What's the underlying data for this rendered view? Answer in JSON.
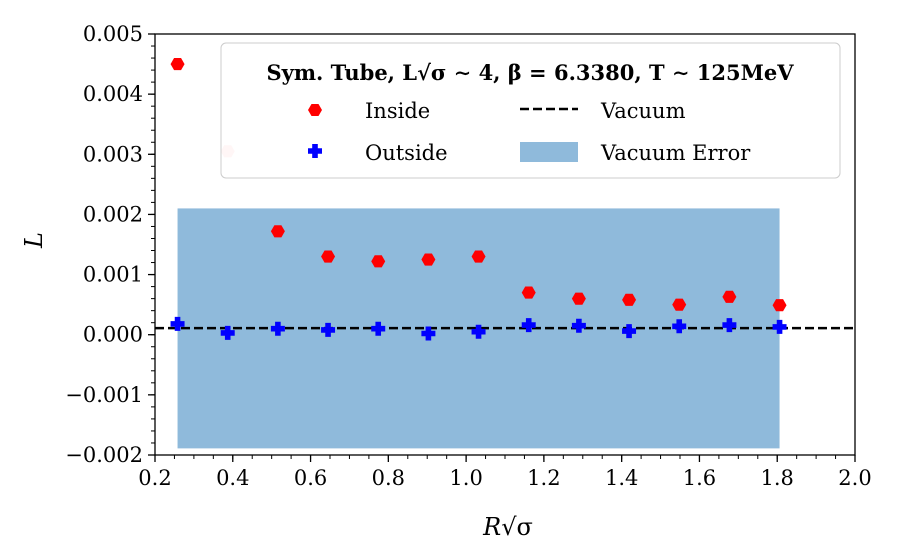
{
  "chart_data": {
    "type": "scatter",
    "title": "",
    "xlabel": "R√σ",
    "ylabel": "L",
    "xlim": [
      0.2,
      2.0
    ],
    "ylim": [
      -0.002,
      0.005
    ],
    "x_ticks": [
      0.2,
      0.4,
      0.6,
      0.8,
      1.0,
      1.2,
      1.4,
      1.6,
      1.8,
      2.0
    ],
    "x_tick_labels": [
      "0.2",
      "0.4",
      "0.6",
      "0.8",
      "1.0",
      "1.2",
      "1.4",
      "1.6",
      "1.8",
      "2.0"
    ],
    "y_ticks": [
      -0.002,
      -0.001,
      0.0,
      0.001,
      0.002,
      0.003,
      0.004,
      0.005
    ],
    "y_tick_labels": [
      "−0.002",
      "−0.001",
      "0.000",
      "0.001",
      "0.002",
      "0.003",
      "0.004",
      "0.005"
    ],
    "legend": {
      "title": "Sym.  Tube, L√σ ∼ 4, β = 6.3380, T ∼ 125MeV",
      "entries": [
        "Inside",
        "Vacuum",
        "Outside",
        "Vacuum Error"
      ],
      "location": "top-right"
    },
    "series": [
      {
        "name": "Inside",
        "marker": "hexagon",
        "color": "#ff0000",
        "x": [
          0.258,
          0.387,
          0.516,
          0.645,
          0.774,
          0.903,
          1.032,
          1.161,
          1.29,
          1.419,
          1.548,
          1.677,
          1.806
        ],
        "y": [
          0.0045,
          0.00305,
          0.00172,
          0.0013,
          0.00122,
          0.00125,
          0.0013,
          0.0007,
          0.0006,
          0.00058,
          0.0005,
          0.00063,
          0.00049
        ]
      },
      {
        "name": "Outside",
        "marker": "plus",
        "color": "#0000ff",
        "x": [
          0.258,
          0.387,
          0.516,
          0.645,
          0.774,
          0.903,
          1.032,
          1.161,
          1.29,
          1.419,
          1.548,
          1.677,
          1.806
        ],
        "y": [
          0.00018,
          3e-05,
          0.0001,
          8e-05,
          0.0001,
          2e-05,
          5e-05,
          0.00016,
          0.00015,
          6e-05,
          0.00014,
          0.00016,
          0.00013
        ]
      }
    ],
    "vacuum": {
      "name": "Vacuum",
      "y": 0.00011,
      "color": "#000000",
      "style": "dashed"
    },
    "vacuum_error": {
      "name": "Vacuum Error",
      "x_range": [
        0.258,
        1.806
      ],
      "y_range": [
        -0.00189,
        0.0021
      ],
      "color": "#8fbadb"
    },
    "faded_point_index": 1,
    "faded_color": "#ffc0c0"
  }
}
